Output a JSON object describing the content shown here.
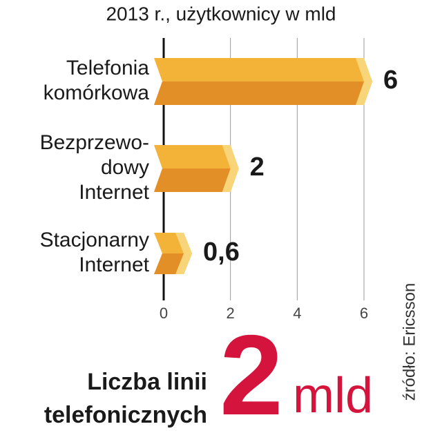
{
  "chart_data": {
    "type": "bar",
    "orientation": "horizontal",
    "subtitle": "2013 r., użytkownicy w mld",
    "categories": [
      [
        "Telefonia",
        "komórkowa"
      ],
      [
        "Bezprzewo-",
        "dowy",
        "Internet"
      ],
      [
        "Stacjonarny",
        "Internet"
      ]
    ],
    "values": [
      6,
      2,
      0.6
    ],
    "value_labels": [
      "6",
      "2",
      "0,6"
    ],
    "color": "#f2b338",
    "xlim": [
      0,
      6
    ],
    "xticks": [
      0,
      2,
      4,
      6
    ],
    "grid": true
  },
  "headline": {
    "label": [
      "Liczba linii",
      "telefonicznych"
    ],
    "value": 2,
    "unit": "mld",
    "color": "#d4143c"
  },
  "source": "źródło: Ericsson"
}
